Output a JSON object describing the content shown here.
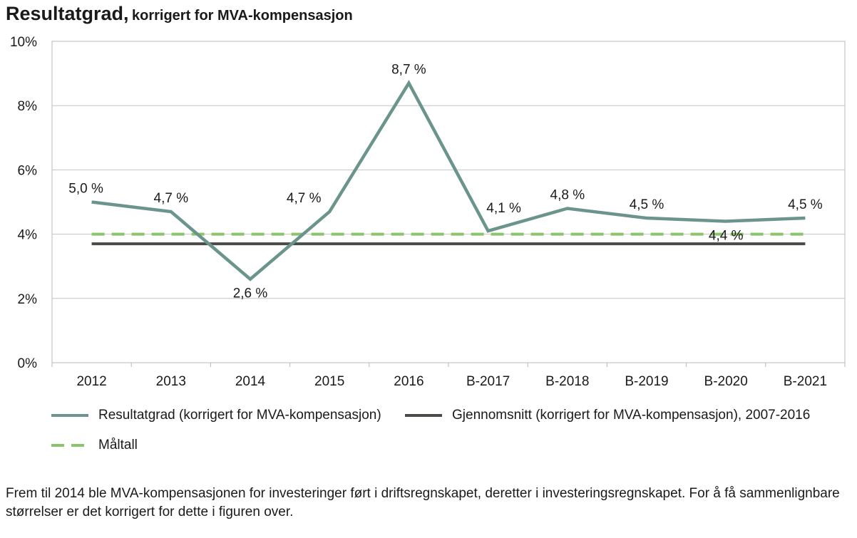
{
  "title": "Resultatgrad,",
  "subtitle": "korrigert for MVA-kompensasjon",
  "chart_data": {
    "type": "line",
    "categories": [
      "2012",
      "2013",
      "2014",
      "2015",
      "2016",
      "B-2017",
      "B-2018",
      "B-2019",
      "B-2020",
      "B-2021"
    ],
    "ylim": [
      0,
      10
    ],
    "y_ticks": [
      "0%",
      "2%",
      "4%",
      "6%",
      "8%",
      "10%"
    ],
    "grid": "horizontal",
    "legend_position": "bottom",
    "series": [
      {
        "name": "Resultatgrad (korrigert for MVA-kompensasjon)",
        "color": "#6b948c",
        "values": [
          5.0,
          4.7,
          2.6,
          4.7,
          8.7,
          4.1,
          4.8,
          4.5,
          4.4,
          4.5
        ],
        "labels": [
          "5,0 %",
          "4,7 %",
          "2,6 %",
          "4,7 %",
          "8,7 %",
          "4,1 %",
          "4,8 %",
          "4,5 %",
          "4,4 %",
          "4,5 %"
        ]
      },
      {
        "name": "Gjennomsnitt (korrigert for MVA-kompensasjon), 2007-2016",
        "color": "#4a4a46",
        "values": [
          3.7,
          3.7,
          3.7,
          3.7,
          3.7,
          3.7,
          3.7,
          3.7,
          3.7,
          3.7
        ]
      },
      {
        "name": "Måltall",
        "color": "#8bc56b",
        "style": "dashed",
        "values": [
          4.0,
          4.0,
          4.0,
          4.0,
          4.0,
          4.0,
          4.0,
          4.0,
          4.0,
          4.0
        ]
      }
    ]
  },
  "footnote": "Frem til 2014 ble MVA-kompensasjonen for investeringer ført i driftsregnskapet, deretter i investeringsregnskapet. For å få sammenlignbare størrelser er det korrigert for dette i figuren over."
}
